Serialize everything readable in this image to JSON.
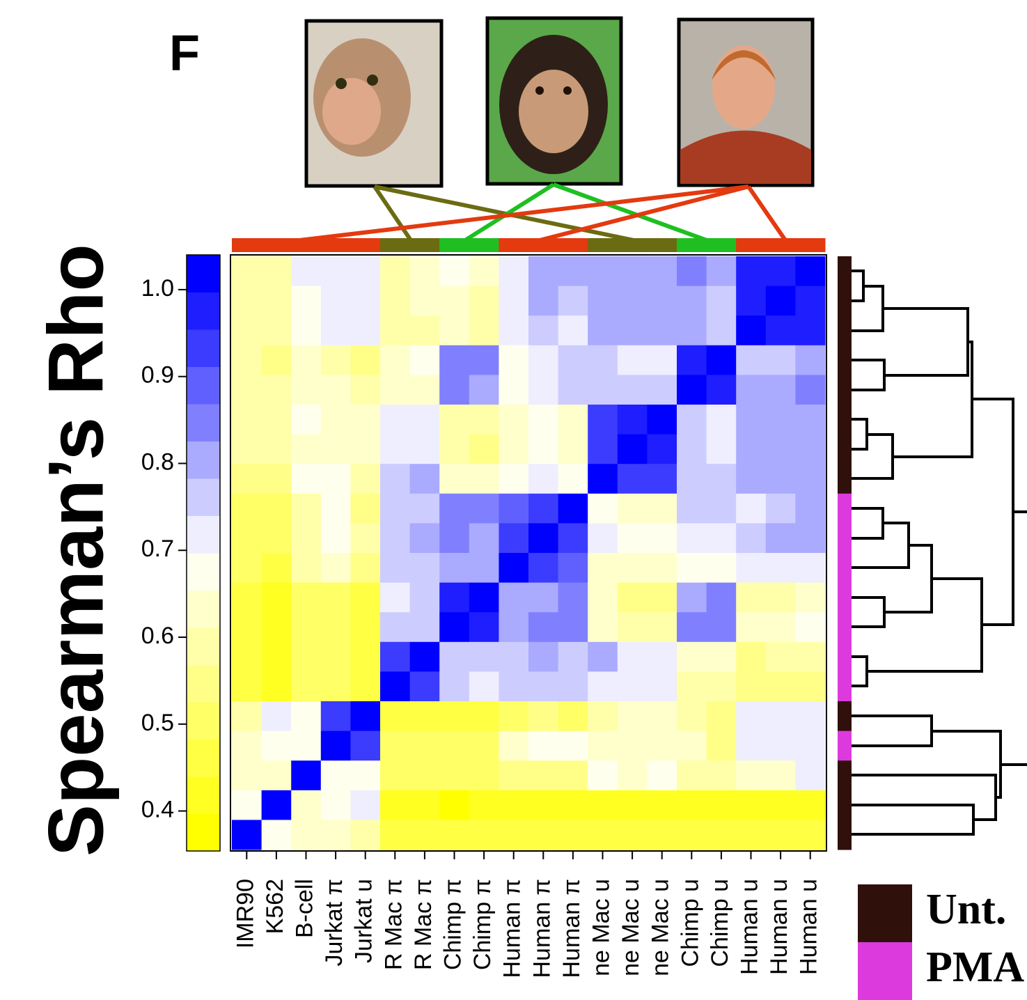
{
  "chart_data": {
    "type": "heatmap",
    "title": "Spearman’s Rho",
    "panel": "F",
    "categories": [
      "IMR90",
      "K562",
      "B-cell",
      "Jurkat π",
      "Jurkat u",
      "R Mac π",
      "R Mac π",
      "Chimp π",
      "Chimp π",
      "Human π",
      "Human π",
      "Human π",
      "ne Mac u",
      "ne Mac u",
      "ne Mac u",
      "Chimp u",
      "Chimp u",
      "Human u",
      "Human u",
      "Human u"
    ],
    "z": [
      [
        0.59,
        0.59,
        0.72,
        0.72,
        0.72,
        0.59,
        0.63,
        0.68,
        0.63,
        0.72,
        0.81,
        0.81,
        0.81,
        0.81,
        0.81,
        0.85,
        0.81,
        0.98,
        0.98,
        1
      ],
      [
        0.59,
        0.59,
        0.68,
        0.72,
        0.72,
        0.59,
        0.63,
        0.63,
        0.59,
        0.72,
        0.81,
        0.76,
        0.81,
        0.81,
        0.81,
        0.81,
        0.76,
        0.98,
        1,
        0.98
      ],
      [
        0.59,
        0.59,
        0.68,
        0.72,
        0.72,
        0.59,
        0.59,
        0.63,
        0.59,
        0.72,
        0.76,
        0.72,
        0.81,
        0.81,
        0.81,
        0.81,
        0.76,
        1,
        0.98,
        0.98
      ],
      [
        0.59,
        0.55,
        0.63,
        0.59,
        0.55,
        0.63,
        0.68,
        0.85,
        0.85,
        0.68,
        0.72,
        0.76,
        0.76,
        0.72,
        0.72,
        0.98,
        1,
        0.76,
        0.76,
        0.81
      ],
      [
        0.59,
        0.59,
        0.63,
        0.63,
        0.59,
        0.63,
        0.63,
        0.85,
        0.81,
        0.68,
        0.72,
        0.76,
        0.76,
        0.76,
        0.76,
        1,
        0.98,
        0.81,
        0.81,
        0.85
      ],
      [
        0.59,
        0.59,
        0.68,
        0.63,
        0.63,
        0.72,
        0.72,
        0.59,
        0.59,
        0.63,
        0.68,
        0.63,
        0.94,
        0.98,
        1,
        0.76,
        0.72,
        0.81,
        0.81,
        0.81
      ],
      [
        0.59,
        0.59,
        0.63,
        0.63,
        0.63,
        0.72,
        0.72,
        0.59,
        0.55,
        0.63,
        0.68,
        0.63,
        0.94,
        1,
        0.98,
        0.76,
        0.72,
        0.81,
        0.81,
        0.81
      ],
      [
        0.55,
        0.55,
        0.68,
        0.68,
        0.59,
        0.76,
        0.81,
        0.63,
        0.63,
        0.68,
        0.72,
        0.68,
        1,
        0.94,
        0.94,
        0.76,
        0.76,
        0.81,
        0.81,
        0.81
      ],
      [
        0.51,
        0.51,
        0.59,
        0.68,
        0.55,
        0.76,
        0.76,
        0.85,
        0.85,
        0.89,
        0.94,
        1,
        0.68,
        0.63,
        0.63,
        0.76,
        0.76,
        0.72,
        0.76,
        0.81
      ],
      [
        0.51,
        0.51,
        0.59,
        0.68,
        0.59,
        0.76,
        0.81,
        0.85,
        0.81,
        0.94,
        1,
        0.94,
        0.72,
        0.68,
        0.68,
        0.72,
        0.72,
        0.76,
        0.81,
        0.81
      ],
      [
        0.51,
        0.46,
        0.59,
        0.63,
        0.55,
        0.76,
        0.76,
        0.81,
        0.81,
        1,
        0.94,
        0.89,
        0.63,
        0.63,
        0.63,
        0.68,
        0.68,
        0.72,
        0.72,
        0.72
      ],
      [
        0.46,
        0.42,
        0.51,
        0.51,
        0.46,
        0.72,
        0.76,
        0.98,
        1,
        0.81,
        0.81,
        0.85,
        0.63,
        0.55,
        0.55,
        0.81,
        0.85,
        0.59,
        0.59,
        0.63
      ],
      [
        0.46,
        0.42,
        0.51,
        0.51,
        0.46,
        0.76,
        0.76,
        1,
        0.98,
        0.81,
        0.85,
        0.85,
        0.63,
        0.59,
        0.59,
        0.85,
        0.85,
        0.63,
        0.63,
        0.68
      ],
      [
        0.46,
        0.42,
        0.51,
        0.51,
        0.46,
        0.94,
        1,
        0.76,
        0.76,
        0.76,
        0.81,
        0.76,
        0.81,
        0.72,
        0.72,
        0.63,
        0.63,
        0.55,
        0.59,
        0.59
      ],
      [
        0.46,
        0.42,
        0.51,
        0.51,
        0.46,
        1,
        0.94,
        0.76,
        0.72,
        0.76,
        0.76,
        0.76,
        0.72,
        0.72,
        0.72,
        0.59,
        0.59,
        0.55,
        0.55,
        0.55
      ],
      [
        0.59,
        0.72,
        0.68,
        0.94,
        1,
        0.46,
        0.46,
        0.46,
        0.46,
        0.51,
        0.55,
        0.51,
        0.59,
        0.63,
        0.63,
        0.59,
        0.55,
        0.72,
        0.72,
        0.72
      ],
      [
        0.63,
        0.68,
        0.68,
        1,
        0.94,
        0.51,
        0.51,
        0.51,
        0.51,
        0.63,
        0.68,
        0.68,
        0.63,
        0.63,
        0.63,
        0.63,
        0.55,
        0.72,
        0.72,
        0.72
      ],
      [
        0.63,
        0.63,
        1,
        0.68,
        0.68,
        0.51,
        0.51,
        0.51,
        0.51,
        0.55,
        0.55,
        0.55,
        0.68,
        0.63,
        0.68,
        0.59,
        0.59,
        0.63,
        0.63,
        0.72
      ],
      [
        0.68,
        1,
        0.63,
        0.68,
        0.72,
        0.42,
        0.42,
        0.38,
        0.42,
        0.42,
        0.42,
        0.42,
        0.42,
        0.42,
        0.42,
        0.42,
        0.42,
        0.42,
        0.42,
        0.42
      ],
      [
        1,
        0.68,
        0.63,
        0.63,
        0.59,
        0.46,
        0.46,
        0.46,
        0.46,
        0.46,
        0.46,
        0.46,
        0.46,
        0.46,
        0.46,
        0.46,
        0.46,
        0.46,
        0.46,
        0.46
      ]
    ],
    "zlim": [
      0.354,
      1.04
    ],
    "zticks": [
      {
        "value": 1,
        "label": "1.0"
      },
      0.9,
      0.8,
      0.7,
      0.6,
      0.5,
      0.4
    ],
    "palette": [
      "#ffff00",
      "#ffff22",
      "#ffff44",
      "#ffff66",
      "#ffff88",
      "#ffffaa",
      "#ffffcc",
      "#ffffee",
      "#eeeeff",
      "#ccccff",
      "#aaaaff",
      "#8080ff",
      "#6060ff",
      "#3c3cff",
      "#1e1eff",
      "#0000ff"
    ],
    "species_colors": [
      "#6b6b12",
      "#1fbf22",
      "#e33a10"
    ],
    "column_species": [
      2,
      2,
      2,
      2,
      2,
      0,
      0,
      1,
      1,
      2,
      2,
      2,
      0,
      0,
      0,
      1,
      1,
      2,
      2,
      2
    ],
    "row_groups": [
      0,
      0,
      0,
      0,
      0,
      0,
      0,
      0,
      1,
      1,
      1,
      1,
      1,
      1,
      1,
      0,
      1,
      0,
      0,
      0
    ],
    "legend": [
      {
        "name": "Unt.",
        "color": "#2f100b"
      },
      {
        "name": "PMA",
        "color": "#dd3ade"
      }
    ]
  }
}
